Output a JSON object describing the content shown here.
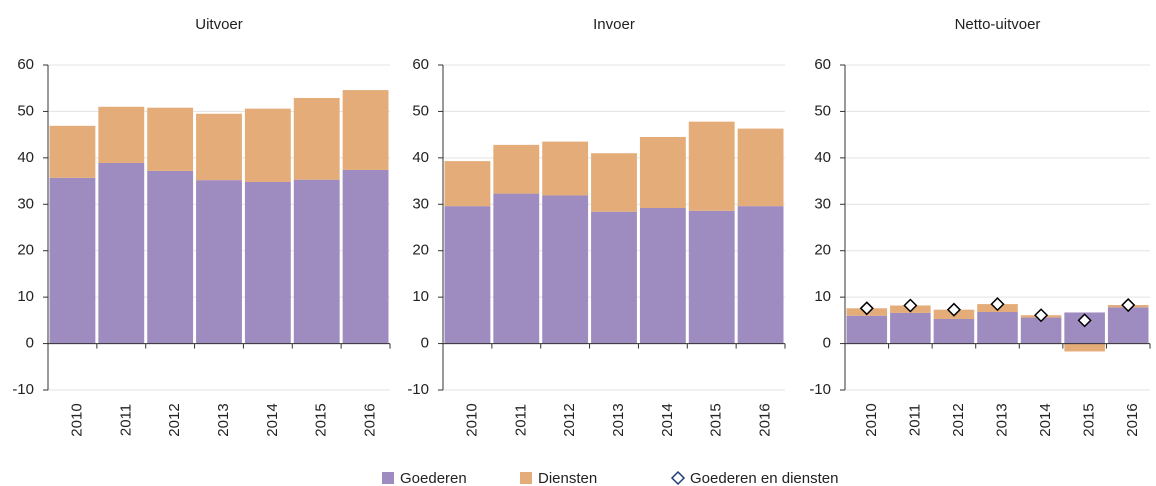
{
  "chart_data": [
    {
      "type": "bar",
      "stacked": true,
      "title": "Uitvoer",
      "categories": [
        "2010",
        "2011",
        "2012",
        "2013",
        "2014",
        "2015",
        "2016"
      ],
      "series": [
        {
          "name": "Goederen",
          "color": "#9e8bc0",
          "values": [
            35.7,
            38.9,
            37.2,
            35.2,
            34.8,
            35.3,
            37.4
          ]
        },
        {
          "name": "Diensten",
          "color": "#e3ac78",
          "values": [
            11.2,
            12.1,
            13.6,
            14.3,
            15.8,
            17.6,
            17.2
          ]
        }
      ],
      "ylim": [
        -10,
        60
      ],
      "yticks": [
        -10,
        0,
        10,
        20,
        30,
        40,
        50,
        60
      ],
      "grid": true
    },
    {
      "type": "bar",
      "stacked": true,
      "title": "Invoer",
      "categories": [
        "2010",
        "2011",
        "2012",
        "2013",
        "2014",
        "2015",
        "2016"
      ],
      "series": [
        {
          "name": "Goederen",
          "color": "#9e8bc0",
          "values": [
            29.6,
            32.3,
            31.9,
            28.4,
            29.2,
            28.6,
            29.6
          ]
        },
        {
          "name": "Diensten",
          "color": "#e3ac78",
          "values": [
            9.7,
            10.5,
            11.6,
            12.6,
            15.3,
            19.2,
            16.7
          ]
        }
      ],
      "ylim": [
        -10,
        60
      ],
      "yticks": [
        -10,
        0,
        10,
        20,
        30,
        40,
        50,
        60
      ],
      "grid": true
    },
    {
      "type": "bar",
      "stacked": true,
      "title": "Netto-uitvoer",
      "categories": [
        "2010",
        "2011",
        "2012",
        "2013",
        "2014",
        "2015",
        "2016"
      ],
      "series": [
        {
          "name": "Goederen",
          "color": "#9e8bc0",
          "values": [
            6.0,
            6.6,
            5.3,
            6.8,
            5.6,
            6.7,
            7.8
          ]
        },
        {
          "name": "Diensten",
          "color": "#e3ac78",
          "values": [
            1.6,
            1.6,
            2.0,
            1.7,
            0.5,
            -1.7,
            0.5
          ]
        },
        {
          "name": "Goederen en diensten",
          "color": "#1f3b7a",
          "marker": "diamond",
          "values": [
            7.6,
            8.2,
            7.3,
            8.5,
            6.1,
            5.0,
            8.3
          ]
        }
      ],
      "ylim": [
        -10,
        60
      ],
      "yticks": [
        -10,
        0,
        10,
        20,
        30,
        40,
        50,
        60
      ],
      "grid": true
    }
  ]
}
